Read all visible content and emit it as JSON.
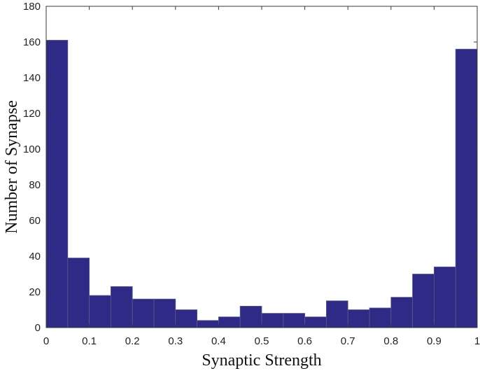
{
  "chart_data": {
    "type": "bar",
    "bin_edges": [
      0,
      0.05,
      0.1,
      0.15,
      0.2,
      0.25,
      0.3,
      0.35,
      0.4,
      0.45,
      0.5,
      0.55,
      0.6,
      0.65,
      0.7,
      0.75,
      0.8,
      0.85,
      0.9,
      0.95,
      1
    ],
    "values": [
      161,
      39,
      18,
      23,
      16,
      16,
      10,
      4,
      6,
      12,
      8,
      8,
      6,
      15,
      10,
      11,
      17,
      30,
      34,
      156
    ],
    "xlabel": "Synaptic Strength",
    "ylabel": "Number of Synapse",
    "xlim": [
      0,
      1
    ],
    "ylim": [
      0,
      180
    ],
    "xticks": [
      "0",
      "0.1",
      "0.2",
      "0.3",
      "0.4",
      "0.5",
      "0.6",
      "0.7",
      "0.8",
      "0.9",
      "1"
    ],
    "yticks": [
      "0",
      "20",
      "40",
      "60",
      "80",
      "100",
      "120",
      "140",
      "160",
      "180"
    ],
    "bar_color": "#2e2a85",
    "grid": false,
    "legend": "none"
  }
}
